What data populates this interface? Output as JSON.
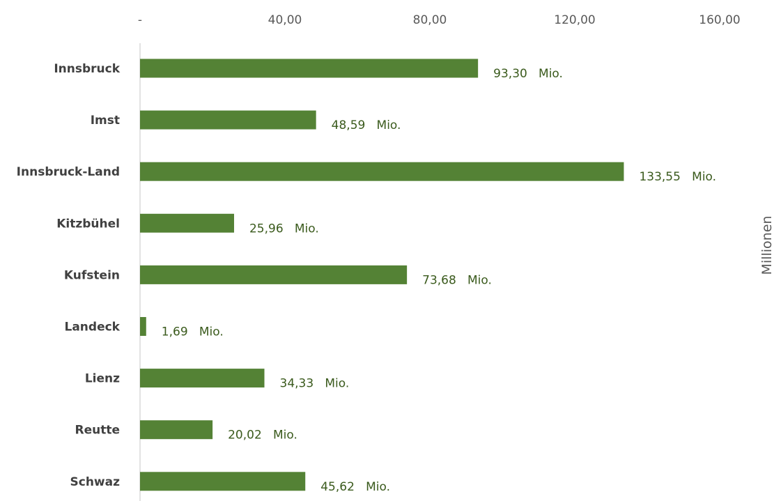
{
  "chart_data": {
    "type": "bar",
    "orientation": "horizontal",
    "categories": [
      "Innsbruck",
      "Imst",
      "Innsbruck-Land",
      "Kitzbühel",
      "Kufstein",
      "Landeck",
      "Lienz",
      "Reutte",
      "Schwaz"
    ],
    "values": [
      93.3,
      48.59,
      133.55,
      25.96,
      73.68,
      1.69,
      34.33,
      20.02,
      45.62
    ],
    "data_labels": [
      "93,30   Mio.",
      "48,59   Mio.",
      "133,55   Mio.",
      "25,96   Mio.",
      "73,68   Mio.",
      "1,69   Mio.",
      "34,33   Mio.",
      "20,02   Mio.",
      "45,62   Mio."
    ],
    "x_ticks": [
      0,
      40,
      80,
      120,
      160
    ],
    "x_tick_labels": [
      "-",
      "40,00",
      "80,00",
      "120,00",
      "160,00"
    ],
    "xlim": [
      0,
      160
    ],
    "x_axis_position": "top",
    "unit_label": "Millionen",
    "title": "",
    "xlabel": "",
    "ylabel": "",
    "grid": false,
    "legend": "none",
    "colors": {
      "bar": "#548235",
      "data_label": "#3a5a1c",
      "axis_line": "#d9d9d9",
      "tick_label": "#595959",
      "category_label": "#404040"
    }
  }
}
